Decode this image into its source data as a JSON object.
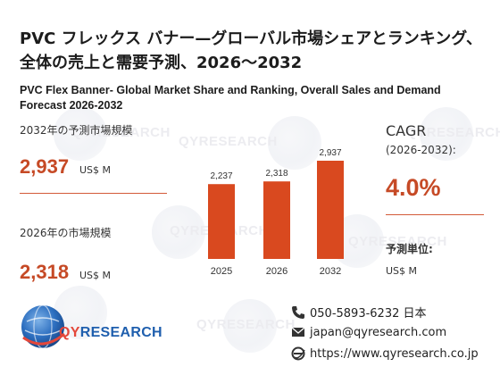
{
  "title_jp": "PVC フレックス バナー—グローバル市場シェアとランキング、全体の売上と需要予測、2026～2032",
  "title_en": "PVC Flex Banner- Global Market Share and Ranking, Overall Sales and Demand Forecast 2026-2032",
  "left_panel": {
    "size_2032_label": "2032年の予測市場規模",
    "size_2032_value": "2,937",
    "size_2032_unit": "US$ M",
    "size_2026_label": "2026年の市場規模",
    "size_2026_value": "2,318",
    "size_2026_unit": "US$ M"
  },
  "right_panel": {
    "cagr_label": "CAGR",
    "cagr_period": "(2026-2032):",
    "cagr_value": "4.0%",
    "unit_label": "予測単位:",
    "unit_value": "US$ M"
  },
  "chart_data": {
    "type": "bar",
    "categories": [
      "2025",
      "2026",
      "2032"
    ],
    "values": [
      2237,
      2318,
      2937
    ],
    "data_labels": [
      "2,237",
      "2,318",
      "2,937"
    ],
    "bar_color": "#d9491f",
    "ylim": [
      0,
      2937
    ]
  },
  "logo": {
    "text_q": "QY",
    "text_rest": "RESEARCH"
  },
  "watermark": {
    "text": "QYRESEARCH"
  },
  "contact": {
    "phone": "050-5893-6232 日本",
    "email": "japan@qyresearch.com",
    "web": "https://www.qyresearch.co.jp"
  },
  "colors": {
    "accent": "#c64a26",
    "bar": "#d9491f",
    "brand_blue": "#1f5fae"
  }
}
